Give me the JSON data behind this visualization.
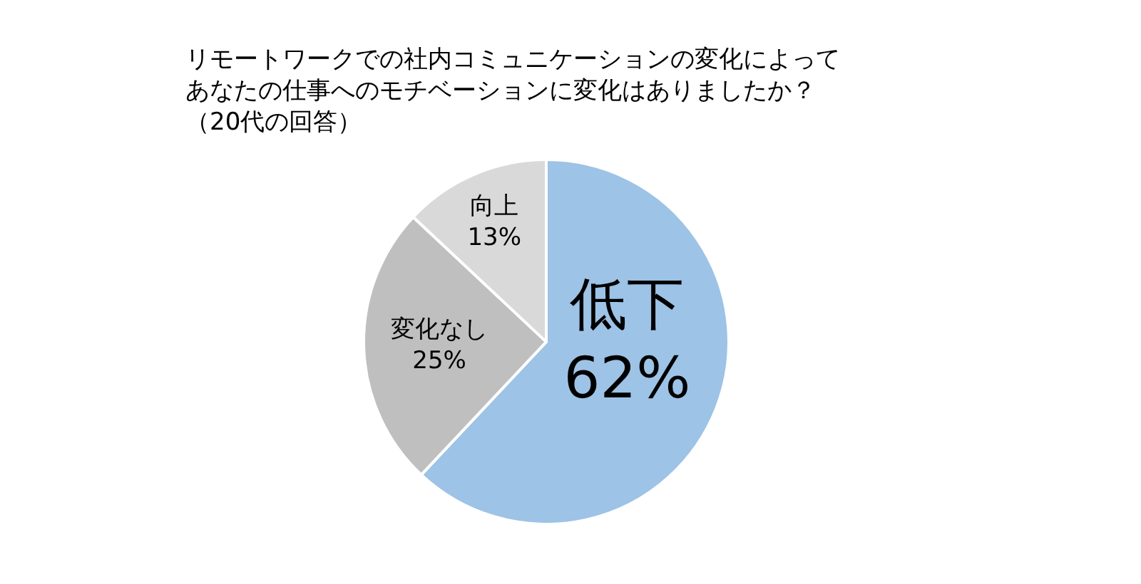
{
  "chart_data": {
    "type": "pie",
    "title": "リモートワークでの社内コミュニケーションの変化によってあなたの仕事へのモチベーションに変化はありましたか？",
    "subtitle": "（20代の回答）",
    "categories": [
      "低下",
      "変化なし",
      "向上"
    ],
    "values": [
      62,
      25,
      13
    ],
    "value_labels": [
      "62%",
      "25%",
      "13%"
    ],
    "colors": [
      "#9dc3e6",
      "#bfbfbf",
      "#d9d9d9"
    ],
    "legend": false
  }
}
